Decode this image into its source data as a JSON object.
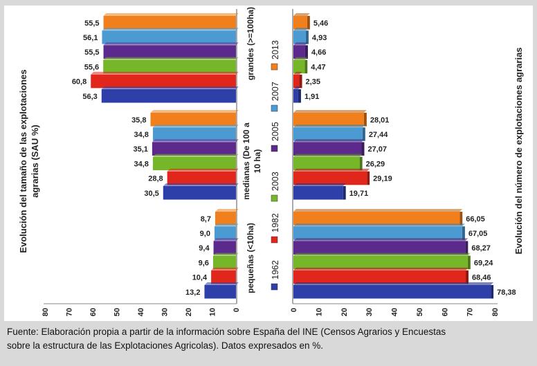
{
  "colors": {
    "1962": "#2e3fa9",
    "1982": "#e1261c",
    "2003": "#76b72a",
    "2005": "#5b2a8c",
    "2007": "#4b9bd2",
    "2013": "#f07f1c"
  },
  "chart_data": {
    "type": "bar",
    "left_axis_title": "Evolución del tamaño de las explotaciones agrarias (SAU %)",
    "right_axis_title": "Evolución del número de explotaciones agrarias",
    "xlim": [
      0,
      80
    ],
    "left_ticks": [
      "80",
      "70",
      "60",
      "50",
      "40",
      "30",
      "20",
      "10",
      "0"
    ],
    "right_ticks": [
      "0",
      "10",
      "20",
      "30",
      "40",
      "50",
      "60",
      "70",
      "80"
    ],
    "legend": [
      "1962",
      "1982",
      "2003",
      "2005",
      "2007",
      "2013"
    ],
    "groups": [
      {
        "label": "grandes (>=100ha)",
        "left_values": [
          {
            "year": "2013",
            "value": "55,5"
          },
          {
            "year": "2007",
            "value": "56,1"
          },
          {
            "year": "2005",
            "value": "55,5"
          },
          {
            "year": "2003",
            "value": "55,6"
          },
          {
            "year": "1982",
            "value": "60,8"
          },
          {
            "year": "1962",
            "value": "56,3"
          }
        ],
        "right_values": [
          {
            "year": "2013",
            "value": "5,46"
          },
          {
            "year": "2007",
            "value": "4,93"
          },
          {
            "year": "2005",
            "value": "4,66"
          },
          {
            "year": "2003",
            "value": "4,47"
          },
          {
            "year": "1982",
            "value": "2,35"
          },
          {
            "year": "1962",
            "value": "1,91"
          }
        ]
      },
      {
        "label": "medianas (De 100 a 10 ha)",
        "left_values": [
          {
            "year": "2013",
            "value": "35,8"
          },
          {
            "year": "2007",
            "value": "34,8"
          },
          {
            "year": "2005",
            "value": "35,1"
          },
          {
            "year": "2003",
            "value": "34,8"
          },
          {
            "year": "1982",
            "value": "28,8"
          },
          {
            "year": "1962",
            "value": "30,5"
          }
        ],
        "right_values": [
          {
            "year": "2013",
            "value": "28,01"
          },
          {
            "year": "2007",
            "value": "27,44"
          },
          {
            "year": "2005",
            "value": "27,07"
          },
          {
            "year": "2003",
            "value": "26,29"
          },
          {
            "year": "1982",
            "value": "29,19"
          },
          {
            "year": "1962",
            "value": "19,71"
          }
        ]
      },
      {
        "label": "pequeñas (<10ha)",
        "left_values": [
          {
            "year": "2013",
            "value": "8,7"
          },
          {
            "year": "2007",
            "value": "9,0"
          },
          {
            "year": "2005",
            "value": "9,4"
          },
          {
            "year": "2003",
            "value": "9,6"
          },
          {
            "year": "1982",
            "value": "10,4"
          },
          {
            "year": "1962",
            "value": "13,2"
          }
        ],
        "right_values": [
          {
            "year": "2013",
            "value": "66,05"
          },
          {
            "year": "2007",
            "value": "67,05"
          },
          {
            "year": "2005",
            "value": "68,27"
          },
          {
            "year": "2003",
            "value": "69,24"
          },
          {
            "year": "1982",
            "value": "68,46"
          },
          {
            "year": "1962",
            "value": "78,38"
          }
        ]
      }
    ]
  },
  "caption": {
    "line1": "Fuente: Elaboración propia a partir de la información sobre España del INE (Censos Agrarios y Encuestas",
    "line2": "sobre la estructura de las Explotaciones Agricolas). Datos expresados en %."
  }
}
